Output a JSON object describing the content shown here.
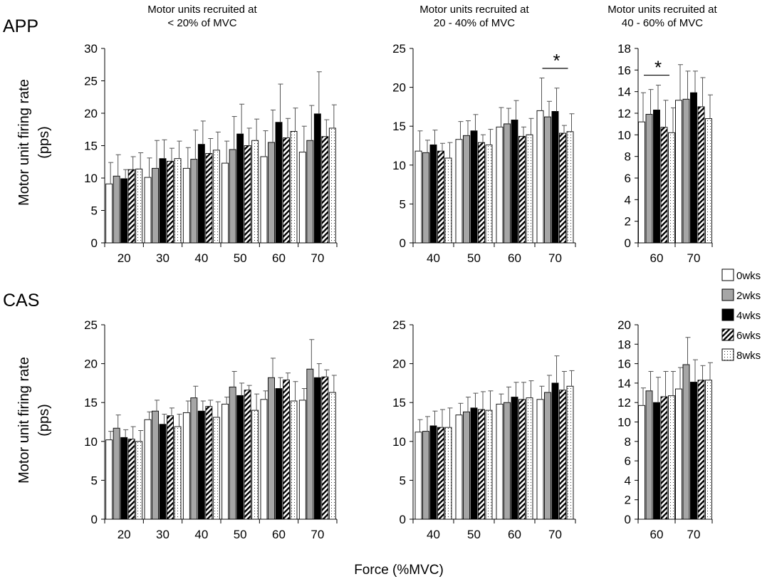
{
  "figure": {
    "x_axis_label": "Force (%MVC)",
    "y_axis_label_line1": "Motor unit firing rate",
    "y_axis_label_line2": "(pps)",
    "column_titles": [
      {
        "line1": "Motor units recruited at",
        "line2": "< 20% of MVC"
      },
      {
        "line1": "Motor units recruited at",
        "line2": "20 - 40% of MVC"
      },
      {
        "line1": "Motor units recruited at",
        "line2": "40 - 60% of MVC"
      }
    ],
    "row_labels": [
      "APP",
      "CAS"
    ],
    "legend": [
      {
        "name": "0wks",
        "pattern": "white"
      },
      {
        "name": "2wks",
        "pattern": "gray"
      },
      {
        "name": "4wks",
        "pattern": "black"
      },
      {
        "name": "6wks",
        "pattern": "hatch"
      },
      {
        "name": "8wks",
        "pattern": "dots"
      }
    ],
    "significance_marker": "*"
  },
  "chart_data": [
    {
      "type": "bar",
      "row": "APP",
      "col": 0,
      "title": "Motor units recruited at < 20% of MVC",
      "xlabel": "Force (%MVC)",
      "ylabel": "Motor unit firing rate (pps)",
      "ylim": [
        0,
        30
      ],
      "yticks": [
        0,
        5,
        10,
        15,
        20,
        25,
        30
      ],
      "categories": [
        "20",
        "30",
        "40",
        "50",
        "60",
        "70"
      ],
      "series": [
        {
          "name": "0wks",
          "values": [
            9.1,
            10.1,
            11.5,
            12.3,
            13.3,
            14.0
          ],
          "errors": [
            3.3,
            3.0,
            3.2,
            3.4,
            4.0,
            4.0
          ]
        },
        {
          "name": "2wks",
          "values": [
            10.3,
            11.5,
            12.9,
            14.4,
            15.5,
            15.8
          ],
          "errors": [
            3.3,
            4.3,
            4.5,
            5.1,
            5.0,
            5.4
          ]
        },
        {
          "name": "4wks",
          "values": [
            9.9,
            13.0,
            15.2,
            16.8,
            18.6,
            19.9
          ],
          "errors": [
            1.4,
            2.9,
            3.6,
            4.6,
            5.9,
            6.5
          ]
        },
        {
          "name": "6wks",
          "values": [
            11.3,
            12.6,
            13.8,
            15.0,
            16.2,
            16.4
          ],
          "errors": [
            2.0,
            2.0,
            2.3,
            2.7,
            3.0,
            2.6
          ]
        },
        {
          "name": "8wks",
          "values": [
            11.4,
            13.0,
            14.3,
            15.8,
            17.2,
            17.7
          ],
          "errors": [
            2.5,
            2.7,
            2.8,
            3.3,
            3.6,
            3.6
          ]
        }
      ]
    },
    {
      "type": "bar",
      "row": "APP",
      "col": 1,
      "title": "Motor units recruited at 20 - 40% of MVC",
      "xlabel": "Force (%MVC)",
      "ylabel": "Motor unit firing rate (pps)",
      "ylim": [
        0,
        25
      ],
      "yticks": [
        0,
        5,
        10,
        15,
        20,
        25
      ],
      "categories": [
        "40",
        "50",
        "60",
        "70"
      ],
      "series": [
        {
          "name": "0wks",
          "values": [
            11.8,
            13.3,
            14.9,
            17.0
          ],
          "errors": [
            2.6,
            2.3,
            2.5,
            4.2
          ]
        },
        {
          "name": "2wks",
          "values": [
            11.6,
            13.8,
            15.3,
            16.2
          ],
          "errors": [
            1.6,
            1.9,
            2.0,
            2.0
          ]
        },
        {
          "name": "4wks",
          "values": [
            12.6,
            14.4,
            15.8,
            16.9
          ],
          "errors": [
            1.9,
            2.1,
            2.5,
            3.0
          ]
        },
        {
          "name": "6wks",
          "values": [
            11.8,
            12.9,
            13.7,
            14.1
          ],
          "errors": [
            1.0,
            1.0,
            1.2,
            1.0
          ]
        },
        {
          "name": "8wks",
          "values": [
            10.9,
            12.6,
            13.9,
            14.3
          ],
          "errors": [
            2.0,
            2.0,
            2.1,
            2.3
          ]
        }
      ],
      "annotations": [
        {
          "text": "*",
          "category": "70"
        }
      ]
    },
    {
      "type": "bar",
      "row": "APP",
      "col": 2,
      "title": "Motor units recruited at 40 - 60% of MVC",
      "xlabel": "Force (%MVC)",
      "ylabel": "Motor unit firing rate (pps)",
      "ylim": [
        0,
        18
      ],
      "yticks": [
        0,
        2,
        4,
        6,
        8,
        10,
        12,
        14,
        16,
        18
      ],
      "categories": [
        "60",
        "70"
      ],
      "series": [
        {
          "name": "0wks",
          "values": [
            11.2,
            13.2
          ],
          "errors": [
            2.7,
            3.3
          ]
        },
        {
          "name": "2wks",
          "values": [
            11.9,
            13.3
          ],
          "errors": [
            2.3,
            2.6
          ]
        },
        {
          "name": "4wks",
          "values": [
            12.3,
            13.9
          ],
          "errors": [
            2.3,
            2.0
          ]
        },
        {
          "name": "6wks",
          "values": [
            10.7,
            12.6
          ],
          "errors": [
            2.5,
            2.7
          ]
        },
        {
          "name": "8wks",
          "values": [
            10.2,
            11.5
          ],
          "errors": [
            2.3,
            2.2
          ]
        }
      ],
      "annotations": [
        {
          "text": "*",
          "category": "60"
        }
      ]
    },
    {
      "type": "bar",
      "row": "CAS",
      "col": 0,
      "title": "Motor units recruited at < 20% of MVC",
      "xlabel": "Force (%MVC)",
      "ylabel": "Motor unit firing rate (pps)",
      "ylim": [
        0,
        25
      ],
      "yticks": [
        0,
        5,
        10,
        15,
        20,
        25
      ],
      "categories": [
        "20",
        "30",
        "40",
        "50",
        "60",
        "70"
      ],
      "series": [
        {
          "name": "0wks",
          "values": [
            10.2,
            12.8,
            13.7,
            14.8,
            15.4,
            15.3
          ],
          "errors": [
            1.1,
            1.0,
            1.5,
            0.9,
            1.1,
            1.5
          ]
        },
        {
          "name": "2wks",
          "values": [
            11.7,
            13.9,
            15.6,
            17.0,
            18.2,
            19.3
          ],
          "errors": [
            1.7,
            1.4,
            1.5,
            2.0,
            2.5,
            3.8
          ]
        },
        {
          "name": "4wks",
          "values": [
            10.5,
            12.2,
            13.9,
            15.9,
            16.8,
            18.2
          ],
          "errors": [
            1.0,
            1.3,
            1.3,
            1.6,
            1.4,
            1.8
          ]
        },
        {
          "name": "6wks",
          "values": [
            10.3,
            13.3,
            14.5,
            16.6,
            17.9,
            18.3
          ],
          "errors": [
            1.6,
            1.0,
            0.8,
            0.6,
            0.9,
            0.9
          ]
        },
        {
          "name": "8wks",
          "values": [
            10.0,
            11.9,
            13.1,
            14.0,
            15.2,
            16.3
          ],
          "errors": [
            1.4,
            1.6,
            2.0,
            2.1,
            2.5,
            2.2
          ]
        }
      ]
    },
    {
      "type": "bar",
      "row": "CAS",
      "col": 1,
      "title": "Motor units recruited at 20 - 40% of MVC",
      "xlabel": "Force (%MVC)",
      "ylabel": "Motor unit firing rate (pps)",
      "ylim": [
        0,
        25
      ],
      "yticks": [
        0,
        5,
        10,
        15,
        20,
        25
      ],
      "categories": [
        "40",
        "50",
        "60",
        "70"
      ],
      "series": [
        {
          "name": "0wks",
          "values": [
            11.2,
            13.4,
            14.8,
            15.4
          ],
          "errors": [
            1.6,
            1.5,
            1.3,
            1.7
          ]
        },
        {
          "name": "2wks",
          "values": [
            11.3,
            13.8,
            15.0,
            16.3
          ],
          "errors": [
            1.9,
            1.9,
            2.0,
            2.2
          ]
        },
        {
          "name": "4wks",
          "values": [
            12.0,
            14.3,
            15.7,
            17.5
          ],
          "errors": [
            1.9,
            1.9,
            1.9,
            3.5
          ]
        },
        {
          "name": "6wks",
          "values": [
            11.8,
            14.1,
            15.4,
            16.6
          ],
          "errors": [
            2.3,
            2.3,
            2.2,
            2.4
          ]
        },
        {
          "name": "8wks",
          "values": [
            11.8,
            14.0,
            15.6,
            17.1
          ],
          "errors": [
            2.5,
            2.5,
            2.2,
            2.0
          ]
        }
      ]
    },
    {
      "type": "bar",
      "row": "CAS",
      "col": 2,
      "title": "Motor units recruited at 40 - 60% of MVC",
      "xlabel": "Force (%MVC)",
      "ylabel": "Motor unit firing rate (pps)",
      "ylim": [
        0,
        20
      ],
      "yticks": [
        0,
        2,
        4,
        6,
        8,
        10,
        12,
        14,
        16,
        18,
        20
      ],
      "categories": [
        "60",
        "70"
      ],
      "series": [
        {
          "name": "0wks",
          "values": [
            11.7,
            13.4
          ],
          "errors": [
            1.8,
            2.2
          ]
        },
        {
          "name": "2wks",
          "values": [
            13.2,
            15.9
          ],
          "errors": [
            2.0,
            2.8
          ]
        },
        {
          "name": "4wks",
          "values": [
            12.0,
            14.1
          ],
          "errors": [
            2.6,
            2.3
          ]
        },
        {
          "name": "6wks",
          "values": [
            12.6,
            14.3
          ],
          "errors": [
            2.6,
            1.5
          ]
        },
        {
          "name": "8wks",
          "values": [
            12.7,
            14.3
          ],
          "errors": [
            2.5,
            1.8
          ]
        }
      ]
    }
  ]
}
